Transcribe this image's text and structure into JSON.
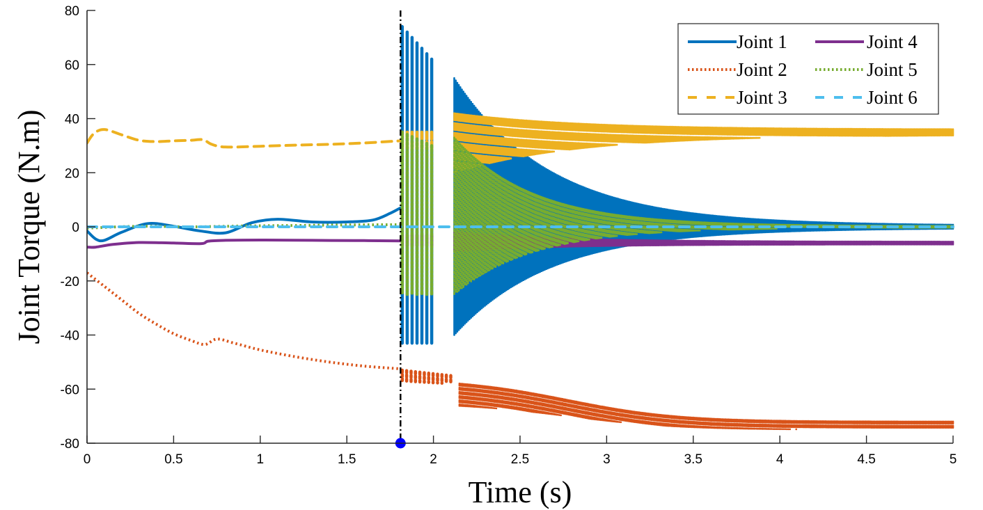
{
  "chart_data": {
    "type": "line",
    "title": "",
    "xlabel": "Time (s)",
    "ylabel": "Joint Torque (N.m)",
    "xlim": [
      0,
      5
    ],
    "ylim": [
      -80,
      80
    ],
    "xticks": [
      0,
      0.5,
      1,
      1.5,
      2,
      2.5,
      3,
      3.5,
      4,
      4.5,
      5
    ],
    "xtick_labels": [
      "0",
      "0.5",
      "1",
      "1.5",
      "2",
      "2.5",
      "3",
      "3.5",
      "4",
      "4.5",
      "5"
    ],
    "yticks": [
      80,
      60,
      40,
      20,
      0,
      -20,
      -40,
      -60,
      -80
    ],
    "ytick_labels": [
      "80",
      "60",
      "40",
      "20",
      "0",
      "-20",
      "-40",
      "-60",
      "-80"
    ],
    "grid": false,
    "legend_position": "top-right",
    "legend_columns": 2,
    "event_marker": {
      "x": 1.81,
      "y": -80,
      "line_style": "dash-dot",
      "line_color": "#000000",
      "marker_color": "#0000ff"
    },
    "series": [
      {
        "name": "Joint 1",
        "color": "#0072bd",
        "style": "solid",
        "x": [
          0,
          0.05,
          0.1,
          0.2,
          0.35,
          0.5,
          0.65,
          0.8,
          0.95,
          1.1,
          1.3,
          1.5,
          1.65,
          1.75,
          1.81
        ],
        "y": [
          -1.5,
          -4.5,
          -5,
          -2,
          1.2,
          0.2,
          -1.5,
          -2.2,
          1.5,
          2.8,
          1.8,
          1.8,
          2.5,
          5,
          7
        ],
        "oscillation": {
          "bursts": [
            {
              "start": 1.82,
              "end": 1.99,
              "upper": [
                74,
                62
              ],
              "lower": [
                -43,
                -43
              ],
              "count": 7
            },
            {
              "start": 2.12,
              "end": 5.0,
              "upper": [
                55,
                0.5
              ],
              "lower": [
                -40,
                -0.5
              ],
              "decay": 0.55
            }
          ],
          "settle": 0
        }
      },
      {
        "name": "Joint 2",
        "color": "#d95319",
        "style": "dotted",
        "x": [
          0,
          0.1,
          0.2,
          0.3,
          0.4,
          0.5,
          0.6,
          0.68,
          0.75,
          0.85,
          1.0,
          1.2,
          1.4,
          1.6,
          1.81
        ],
        "y": [
          -17,
          -22,
          -27,
          -32,
          -36,
          -39.5,
          -42,
          -43.5,
          -41.5,
          -43,
          -45.5,
          -48,
          -50,
          -51.5,
          -52.5
        ],
        "oscillation": {
          "bursts": [
            {
              "start": 1.82,
              "end": 2.1,
              "upper": [
                -53,
                -55
              ],
              "lower": [
                -57,
                -58
              ],
              "count": 12
            },
            {
              "start": 2.15,
              "end": 5.0,
              "upper": [
                -56,
                -72
              ],
              "lower": [
                -65,
                -75
              ],
              "trend": "sigmoid"
            }
          ]
        }
      },
      {
        "name": "Joint 3",
        "color": "#edb120",
        "style": "dashed",
        "x": [
          0,
          0.04,
          0.1,
          0.2,
          0.3,
          0.4,
          0.5,
          0.6,
          0.67,
          0.72,
          0.8,
          1.0,
          1.2,
          1.4,
          1.6,
          1.81
        ],
        "y": [
          31,
          34.5,
          36,
          34,
          32,
          31.5,
          31.8,
          32,
          32.2,
          30.5,
          29.5,
          29.8,
          30.2,
          30.5,
          31,
          31.8
        ],
        "oscillation": {
          "bursts": [
            {
              "start": 1.82,
              "end": 1.99,
              "upper": [
                35,
                35
              ],
              "lower": [
                28,
                28
              ],
              "count": 7
            },
            {
              "start": 2.12,
              "end": 5.0,
              "upper": [
                42,
                36
              ],
              "lower": [
                20,
                34
              ],
              "decay": 0.7
            }
          ]
        }
      },
      {
        "name": "Joint 4",
        "color": "#7e2f8e",
        "style": "solid",
        "x": [
          0,
          0.05,
          0.15,
          0.3,
          0.5,
          0.66,
          0.7,
          0.8,
          1.0,
          1.3,
          1.6,
          1.81
        ],
        "y": [
          -7.5,
          -7.5,
          -6.5,
          -5.8,
          -6,
          -6.2,
          -5.3,
          -5,
          -4.9,
          -5,
          -5.1,
          -5.2
        ],
        "oscillation": {
          "bursts": [
            {
              "start": 1.82,
              "end": 1.99,
              "upper": [
                -3,
                -3
              ],
              "lower": [
                -7,
                -7
              ],
              "count": 7
            },
            {
              "start": 2.12,
              "end": 5.0,
              "upper": [
                -2,
                -5.5
              ],
              "lower": [
                -9,
                -6.5
              ],
              "decay": 0.6
            }
          ]
        }
      },
      {
        "name": "Joint 5",
        "color": "#77ac30",
        "style": "dotted",
        "x": [
          0,
          0.3,
          0.6,
          0.9,
          1.2,
          1.5,
          1.81
        ],
        "y": [
          -0.5,
          0.2,
          0,
          0.3,
          0.5,
          0.7,
          0.8
        ],
        "oscillation": {
          "bursts": [
            {
              "start": 1.82,
              "end": 1.99,
              "upper": [
                35,
                30
              ],
              "lower": [
                -25,
                -25
              ],
              "count": 7
            },
            {
              "start": 2.12,
              "end": 5.0,
              "upper": [
                33,
                0.3
              ],
              "lower": [
                -25,
                -0.3
              ],
              "decay": 0.45
            }
          ]
        }
      },
      {
        "name": "Joint 6",
        "color": "#4dbeee",
        "style": "dashed",
        "x": [
          0,
          1,
          2,
          3,
          4,
          5
        ],
        "y": [
          0,
          0,
          0,
          0,
          0,
          0
        ]
      }
    ]
  }
}
